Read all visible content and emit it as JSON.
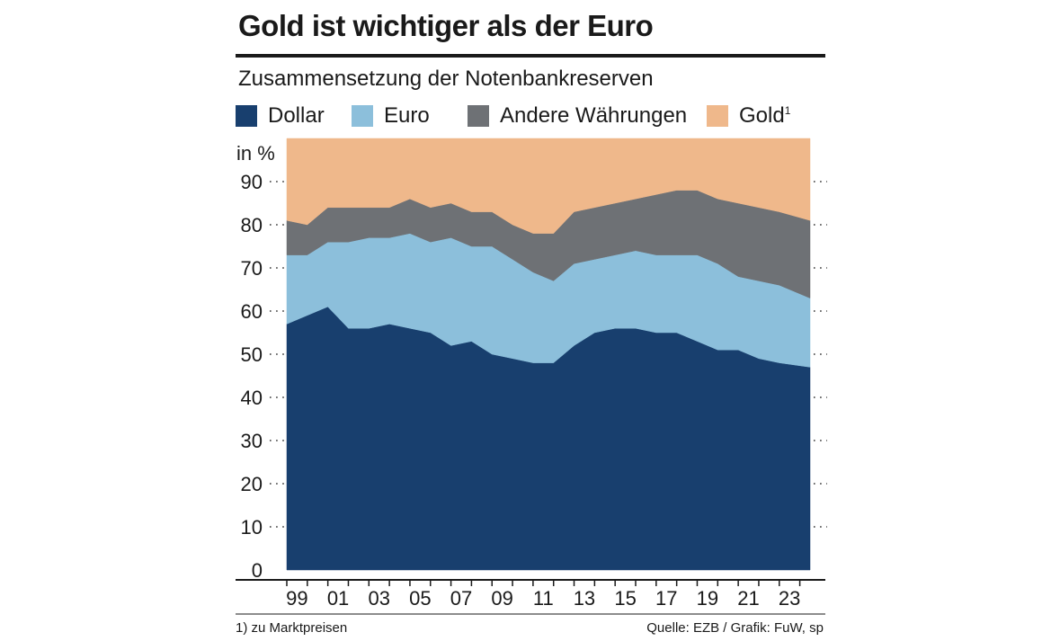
{
  "title": "Gold ist wichtiger als der Euro",
  "subtitle": "Zusammensetzung der Notenbankreserven",
  "footnote": "1) zu Marktpreisen",
  "source": "Quelle: EZB / Grafik: FuW, sp",
  "legend": [
    {
      "label": "Dollar",
      "color": "#183f6e"
    },
    {
      "label": "Euro",
      "color": "#8cbfdb"
    },
    {
      "label": "Andere Währungen",
      "color": "#6e7175"
    },
    {
      "label": "Gold",
      "sup": "1",
      "color": "#efb88b"
    }
  ],
  "chart_data": {
    "type": "area",
    "stacked": true,
    "title": "Gold ist wichtiger als der Euro",
    "subtitle": "Zusammensetzung der Notenbankreserven",
    "ylabel": "in %",
    "xlabel": "",
    "ylim": [
      0,
      100
    ],
    "yticks": [
      0,
      10,
      20,
      30,
      40,
      50,
      60,
      70,
      80,
      90
    ],
    "x": [
      1999,
      2000,
      2001,
      2002,
      2003,
      2004,
      2005,
      2006,
      2007,
      2008,
      2009,
      2010,
      2011,
      2012,
      2013,
      2014,
      2015,
      2016,
      2017,
      2018,
      2019,
      2020,
      2021,
      2022,
      2023,
      2024.5
    ],
    "xticks": [
      1999,
      2001,
      2003,
      2005,
      2007,
      2009,
      2011,
      2013,
      2015,
      2017,
      2019,
      2021,
      2023
    ],
    "xtick_labels": [
      "99",
      "01",
      "03",
      "05",
      "07",
      "09",
      "11",
      "13",
      "15",
      "17",
      "19",
      "21",
      "23"
    ],
    "series": [
      {
        "name": "Dollar",
        "color": "#183f6e",
        "values": [
          57,
          59,
          61,
          56,
          56,
          57,
          56,
          55,
          52,
          53,
          50,
          49,
          48,
          48,
          52,
          55,
          56,
          56,
          55,
          55,
          53,
          51,
          51,
          49,
          48,
          47
        ]
      },
      {
        "name": "Euro",
        "color": "#8cbfdb",
        "values": [
          16,
          14,
          15,
          20,
          21,
          20,
          22,
          21,
          25,
          22,
          25,
          23,
          21,
          19,
          19,
          17,
          17,
          18,
          18,
          18,
          20,
          20,
          17,
          18,
          18,
          16
        ]
      },
      {
        "name": "Andere Währungen",
        "color": "#6e7175",
        "values": [
          8,
          7,
          8,
          8,
          7,
          7,
          8,
          8,
          8,
          8,
          8,
          8,
          9,
          11,
          12,
          12,
          12,
          12,
          14,
          15,
          15,
          15,
          17,
          17,
          17,
          18
        ]
      },
      {
        "name": "Gold",
        "sup": "1",
        "color": "#efb88b",
        "values": [
          19,
          20,
          16,
          16,
          16,
          16,
          14,
          16,
          15,
          17,
          17,
          20,
          22,
          22,
          17,
          16,
          15,
          14,
          13,
          12,
          12,
          14,
          15,
          16,
          17,
          19
        ]
      }
    ]
  }
}
